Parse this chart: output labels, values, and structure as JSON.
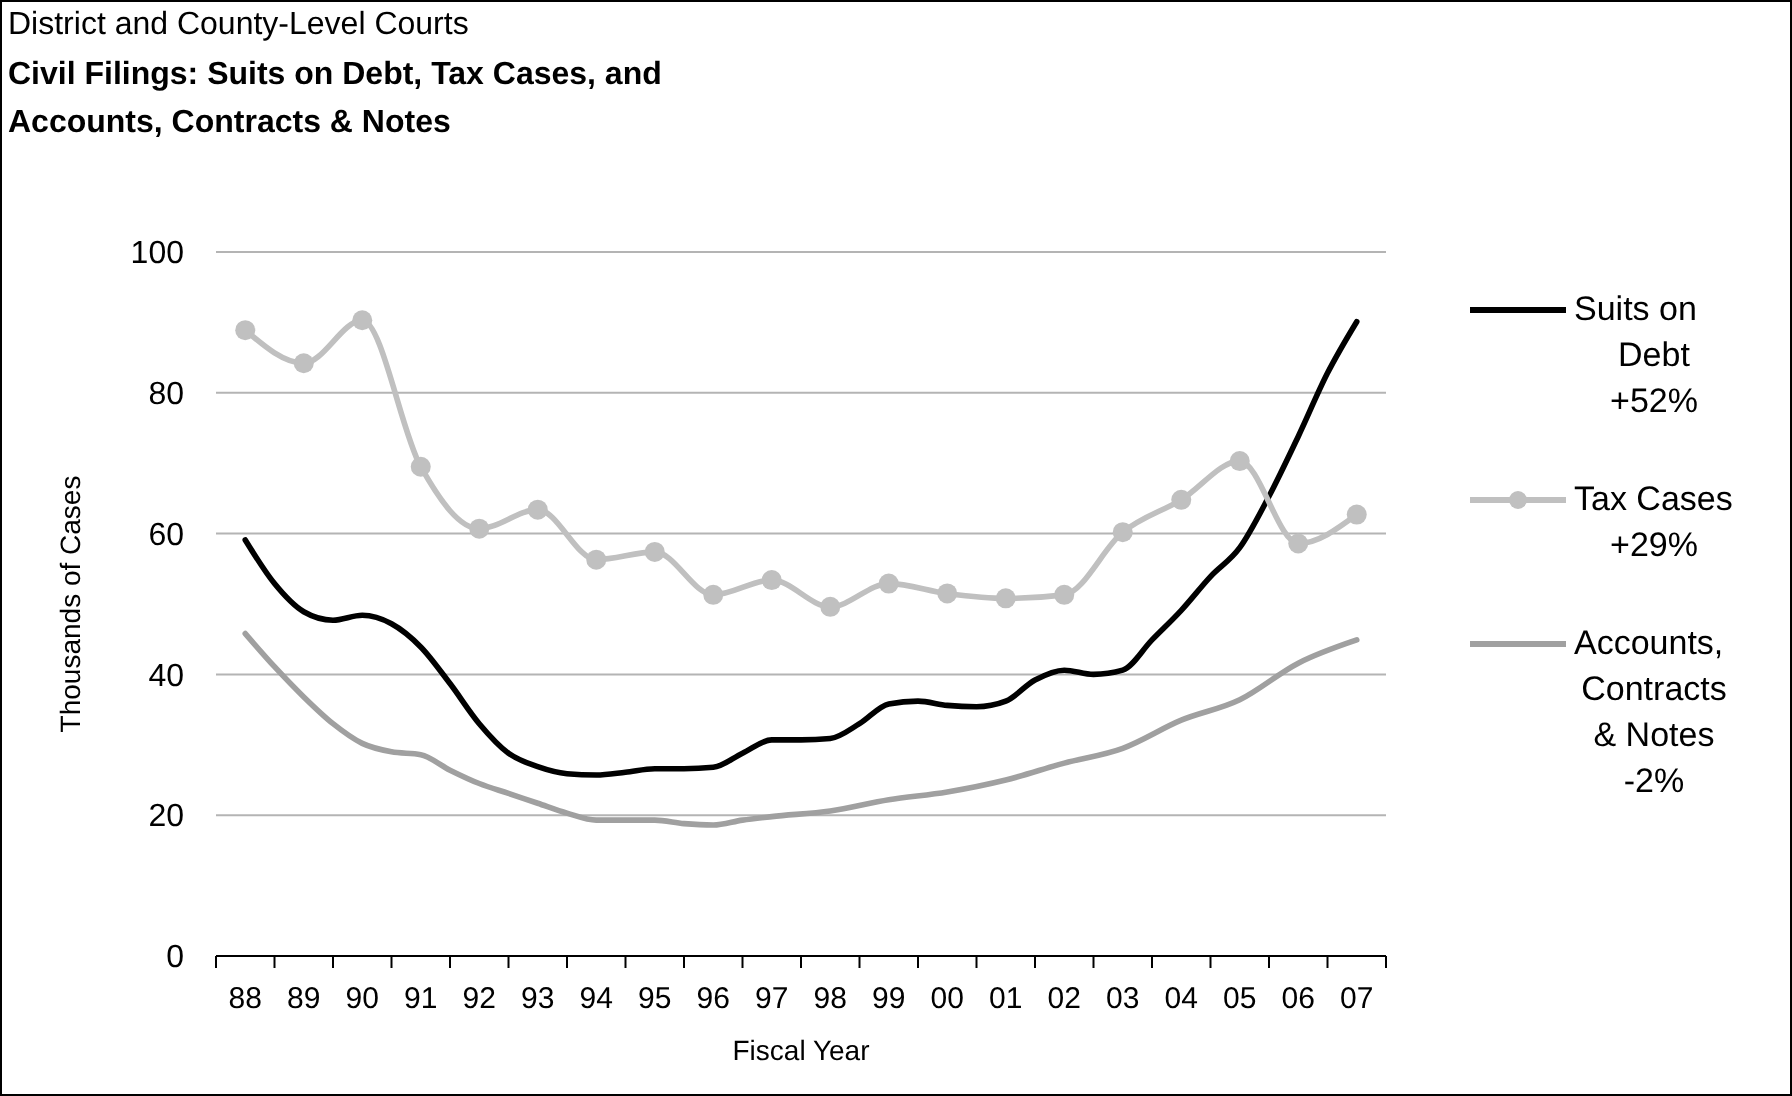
{
  "chart_data": {
    "type": "line",
    "subtitle": "District and County-Level Courts",
    "title": "Civil Filings: Suits on Debt, Tax Cases, and Accounts, Contracts & Notes",
    "xlabel": "Fiscal Year",
    "ylabel": "Thousands of Cases",
    "xlim": [
      1987.5,
      2007.5
    ],
    "xticks": [
      {
        "value": 1988,
        "label": "88"
      },
      {
        "value": 1989,
        "label": "89"
      },
      {
        "value": 1990,
        "label": "90"
      },
      {
        "value": 1991,
        "label": "91"
      },
      {
        "value": 1992,
        "label": "92"
      },
      {
        "value": 1993,
        "label": "93"
      },
      {
        "value": 1994,
        "label": "94"
      },
      {
        "value": 1995,
        "label": "95"
      },
      {
        "value": 1996,
        "label": "96"
      },
      {
        "value": 1997,
        "label": "97"
      },
      {
        "value": 1998,
        "label": "98"
      },
      {
        "value": 1999,
        "label": "99"
      },
      {
        "value": 2000,
        "label": "00"
      },
      {
        "value": 2001,
        "label": "01"
      },
      {
        "value": 2002,
        "label": "02"
      },
      {
        "value": 2003,
        "label": "03"
      },
      {
        "value": 2004,
        "label": "04"
      },
      {
        "value": 2005,
        "label": "05"
      },
      {
        "value": 2006,
        "label": "06"
      },
      {
        "value": 2007,
        "label": "07"
      }
    ],
    "ylim": [
      0,
      100
    ],
    "yticks": [
      0,
      20,
      40,
      60,
      80,
      100
    ],
    "grid": "y",
    "legend": "right",
    "line_style": "solid",
    "series": [
      {
        "name": "Suits on Debt +52%",
        "color": "#000000",
        "marker": "none",
        "x": [
          1988,
          1988.5,
          1989,
          1989.5,
          1990,
          1990.5,
          1991,
          1991.5,
          1992,
          1992.5,
          1993,
          1993.5,
          1994,
          1994.5,
          1995,
          1995.5,
          1996,
          1996.5,
          1997,
          1997.5,
          1998,
          1998.5,
          1999,
          1999.5,
          2000,
          2000.5,
          2001,
          2001.5,
          2002,
          2002.5,
          2003,
          2003.5,
          2004,
          2004.5,
          2005,
          2005.5,
          2006,
          2006.5,
          2007
        ],
        "values": [
          59.1,
          52.9,
          48.9,
          47.7,
          48.4,
          47.2,
          43.9,
          38.7,
          33.0,
          28.8,
          26.9,
          25.9,
          25.7,
          26.1,
          26.6,
          26.6,
          26.8,
          28.8,
          30.7,
          30.7,
          30.9,
          33.0,
          35.8,
          36.2,
          35.6,
          35.4,
          36.2,
          39.2,
          40.6,
          40.0,
          40.6,
          44.9,
          49.1,
          53.9,
          58.0,
          65.3,
          73.8,
          82.8,
          90.1
        ]
      },
      {
        "name": "Tax Cases +29%",
        "color": "#c0c0c0",
        "marker": "circle",
        "x": [
          1988,
          1989,
          1990,
          1991,
          1992,
          1993,
          1994,
          1995,
          1996,
          1997,
          1998,
          1999,
          2000,
          2001,
          2002,
          2003,
          2004,
          2005,
          2006,
          2007
        ],
        "values": [
          88.9,
          84.2,
          90.3,
          69.5,
          60.7,
          63.4,
          56.3,
          57.4,
          51.3,
          53.4,
          49.6,
          52.9,
          51.5,
          50.8,
          51.3,
          60.2,
          64.8,
          70.3,
          58.6,
          62.7
        ]
      },
      {
        "name": "Accounts, Contracts & Notes -2%",
        "color": "#a0a0a0",
        "marker": "none",
        "x": [
          1988,
          1988.5,
          1989,
          1989.5,
          1990,
          1990.5,
          1991,
          1991.5,
          1992,
          1992.5,
          1993,
          1993.5,
          1994,
          1995,
          1995.5,
          1996,
          1996.5,
          1997,
          1998,
          1999,
          2000,
          2001,
          2002,
          2003,
          2004,
          2005,
          2006,
          2007
        ],
        "values": [
          45.8,
          41.1,
          36.8,
          33.0,
          30.2,
          29.0,
          28.6,
          26.4,
          24.5,
          23.1,
          21.7,
          20.3,
          19.3,
          19.3,
          18.8,
          18.6,
          19.3,
          19.8,
          20.6,
          22.2,
          23.3,
          25.0,
          27.4,
          29.5,
          33.5,
          36.4,
          41.6,
          44.9
        ]
      }
    ]
  }
}
